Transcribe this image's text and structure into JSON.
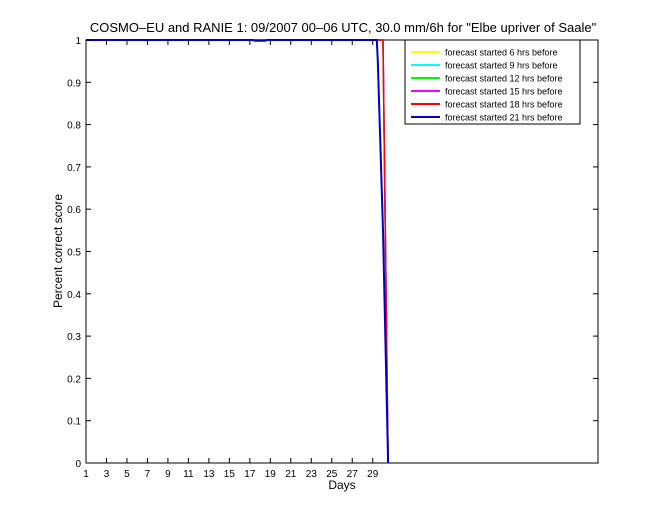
{
  "chart_data": {
    "type": "line",
    "title": "COSMO–EU and RANIE 1: 09/2007 00–06 UTC, 30.0 mm/6h for \"Elbe upriver of Saale\"",
    "xlabel": "Days",
    "ylabel": "Percent correct score",
    "xlim": [
      1,
      51
    ],
    "ylim": [
      0,
      1
    ],
    "xticks": [
      1,
      3,
      5,
      7,
      9,
      11,
      13,
      15,
      17,
      19,
      21,
      23,
      25,
      27,
      29
    ],
    "yticks": [
      0,
      0.1,
      0.2,
      0.3,
      0.4,
      0.5,
      0.6,
      0.7,
      0.8,
      0.9,
      1
    ],
    "grid": false,
    "legend_position": "top-right",
    "series": [
      {
        "name": "forecast started 6 hrs before",
        "color": "#ffff00",
        "x": [
          1,
          29.5,
          30,
          30.5
        ],
        "y": [
          1,
          1,
          1,
          0
        ]
      },
      {
        "name": "forecast started 9 hrs before",
        "color": "#00ffff",
        "x": [
          1,
          29.5,
          30,
          30.5
        ],
        "y": [
          1,
          1,
          1,
          0
        ]
      },
      {
        "name": "forecast started 12 hrs before",
        "color": "#00ff00",
        "x": [
          1,
          29.5,
          30,
          30.5
        ],
        "y": [
          1,
          1,
          1,
          0
        ]
      },
      {
        "name": "forecast started 15 hrs before",
        "color": "#ff00ff",
        "x": [
          1,
          29.5,
          30,
          30.5
        ],
        "y": [
          1,
          1,
          1,
          0
        ]
      },
      {
        "name": "forecast started 18 hrs before",
        "color": "#ff0000",
        "x": [
          1,
          29.5,
          30,
          30.5
        ],
        "y": [
          1,
          1,
          1,
          0
        ]
      },
      {
        "name": "forecast started 21 hrs before",
        "color": "#0000cc",
        "x": [
          1,
          17.3,
          17.5,
          18.5,
          18.7,
          29.4,
          29.5,
          30,
          30.5
        ],
        "y": [
          1,
          1,
          0.998,
          0.998,
          1,
          1,
          0.95,
          0.55,
          0
        ]
      }
    ]
  }
}
